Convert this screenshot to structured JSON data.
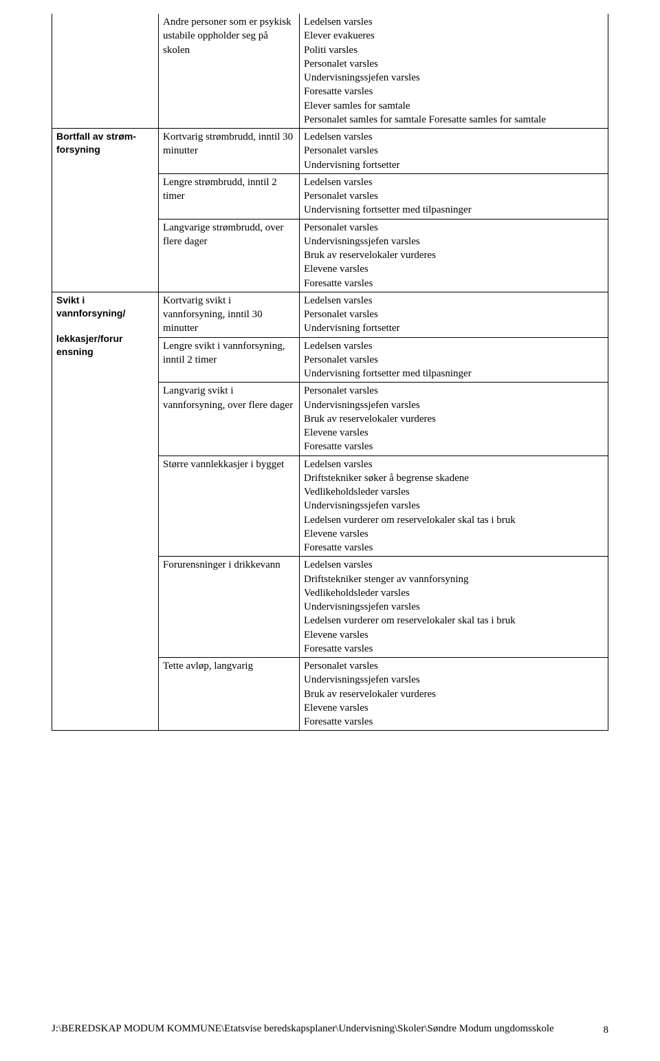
{
  "sections": [
    {
      "header": "",
      "rows": [
        {
          "col2": "Andre personer som er psykisk ustabile oppholder seg på skolen",
          "col3": [
            "Ledelsen varsles",
            "Elever evakueres",
            "Politi varsles",
            "Personalet varsles",
            "Undervisningssjefen varsles",
            "Foresatte varsles",
            "Elever samles for samtale",
            "Personalet samles for samtale Foresatte samles for samtale"
          ]
        }
      ]
    },
    {
      "header": "Bortfall av strøm-forsyning",
      "rows": [
        {
          "col2": "Kortvarig strømbrudd, inntil 30 minutter",
          "col3": [
            "Ledelsen varsles",
            "Personalet varsles",
            "Undervisning fortsetter"
          ]
        },
        {
          "col2": "Lengre strømbrudd, inntil 2 timer",
          "col3": [
            "Ledelsen varsles",
            "Personalet varsles",
            "Undervisning fortsetter med tilpasninger"
          ]
        },
        {
          "col2": "Langvarige strømbrudd, over flere dager",
          "col3": [
            "Personalet varsles",
            "Undervisningssjefen varsles",
            "Bruk av reservelokaler vurderes",
            "Elevene varsles",
            "Foresatte varsles"
          ]
        }
      ]
    },
    {
      "header": "Svikt i vannforsyning/\n\nlekkasjer/forur ensning",
      "rows": [
        {
          "col2": "Kortvarig svikt i vannforsyning, inntil 30 minutter",
          "col3": [
            "Ledelsen varsles",
            "Personalet varsles",
            "Undervisning fortsetter"
          ]
        },
        {
          "col2": "Lengre svikt i vannforsyning, inntil 2 timer",
          "col3": [
            "Ledelsen varsles",
            "Personalet varsles",
            "Undervisning fortsetter med tilpasninger"
          ]
        },
        {
          "col2": "Langvarig svikt i vannforsyning, over flere dager",
          "col3": [
            "Personalet varsles",
            "Undervisningssjefen varsles",
            "Bruk av reservelokaler vurderes",
            "Elevene varsles",
            "Foresatte varsles"
          ]
        },
        {
          "col2": "Større vannlekkasjer i bygget",
          "col3": [
            "Ledelsen varsles",
            "Driftstekniker søker å begrense skadene",
            "Vedlikeholdsleder varsles",
            "Undervisningssjefen varsles",
            "Ledelsen vurderer om reservelokaler skal tas i bruk",
            "Elevene varsles",
            "Foresatte varsles"
          ]
        },
        {
          "col2": "Forurensninger i drikkevann",
          "col3": [
            "Ledelsen varsles",
            "Driftstekniker stenger av vannforsyning",
            "Vedlikeholdsleder varsles",
            "Undervisningssjefen varsles",
            "Ledelsen vurderer om reservelokaler skal tas i bruk",
            "Elevene varsles",
            "Foresatte varsles"
          ]
        },
        {
          "col2": "Tette avløp, langvarig",
          "col3": [
            "Personalet varsles",
            "Undervisningssjefen varsles",
            "Bruk av reservelokaler vurderes",
            "Elevene varsles",
            "Foresatte varsles"
          ]
        }
      ]
    }
  ],
  "footer_path": "J:\\BEREDSKAP MODUM KOMMUNE\\Etatsvise beredskapsplaner\\Undervisning\\Skoler\\Søndre Modum ungdomsskole",
  "page_number": "8"
}
